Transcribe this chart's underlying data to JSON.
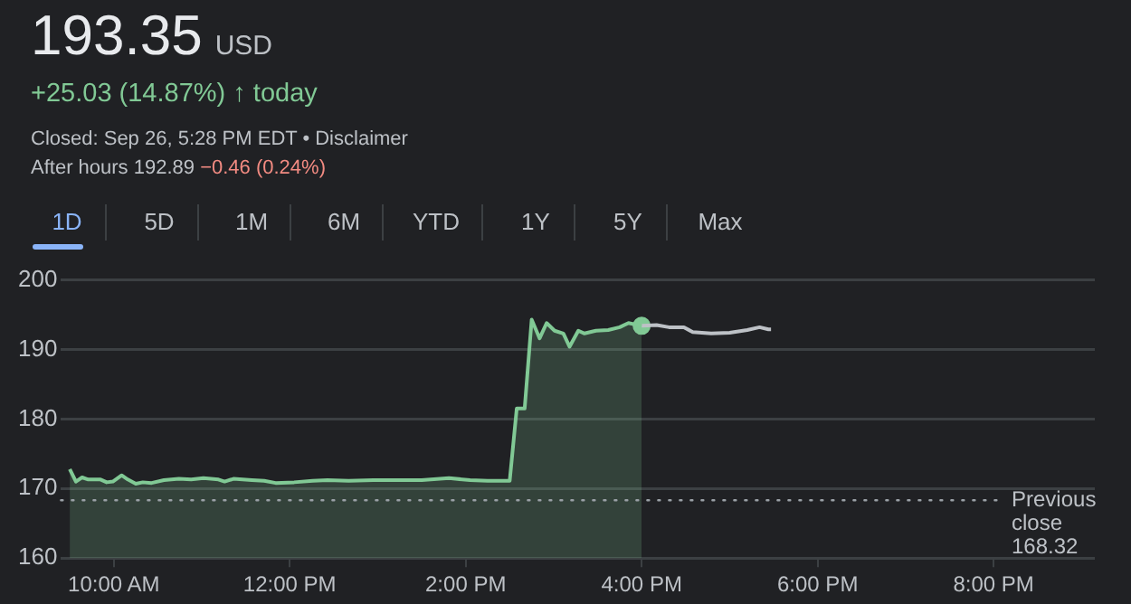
{
  "chart_data": {
    "type": "line",
    "title": "193.35",
    "subtitle": "USD",
    "annotations": [
      "+25.03 (14.87%) ↑ today",
      "Closed: Sep 26, 5:28 PM EDT • Disclaimer",
      "After hours 192.89",
      "−0.46 (0.24%)",
      "1D",
      "5D",
      "1M",
      "6M",
      "YTD",
      "1Y",
      "5Y",
      "Max"
    ],
    "xlim": [
      9.4,
      21.15
    ],
    "xticks": [
      {
        "value": 10,
        "label": "10:00 AM"
      },
      {
        "value": 12,
        "label": "12:00 PM"
      },
      {
        "value": 14,
        "label": "2:00 PM"
      },
      {
        "value": 16,
        "label": "4:00 PM"
      },
      {
        "value": 18,
        "label": "6:00 PM"
      },
      {
        "value": 20,
        "label": "8:00 PM"
      }
    ],
    "ylim": [
      160,
      200
    ],
    "yticks": [
      160,
      170,
      180,
      190,
      200
    ],
    "grid": "y",
    "legend": false,
    "marker": "none",
    "line_style": "solid",
    "series": [
      {
        "type": "area",
        "color": "#81c995",
        "x": [
          9.5,
          9.57,
          9.64,
          9.71,
          9.85,
          9.92,
          9.99,
          10.09,
          10.16,
          10.25,
          10.33,
          10.43,
          10.57,
          10.74,
          10.88,
          11.02,
          11.19,
          11.26,
          11.36,
          11.57,
          11.71,
          11.84,
          12.05,
          12.26,
          12.43,
          12.67,
          12.95,
          13.22,
          13.5,
          13.81,
          14.05,
          14.25,
          14.5,
          14.58,
          14.67,
          14.75,
          14.84,
          14.92,
          15.01,
          15.11,
          15.18,
          15.28,
          15.35,
          15.48,
          15.62,
          15.75,
          15.85,
          16.0
        ],
        "values": [
          172.8,
          171.0,
          171.6,
          171.3,
          171.3,
          170.9,
          171.0,
          171.9,
          171.3,
          170.7,
          170.9,
          170.8,
          171.2,
          171.4,
          171.3,
          171.5,
          171.3,
          171.0,
          171.4,
          171.2,
          171.1,
          170.8,
          170.9,
          171.1,
          171.2,
          171.1,
          171.2,
          171.2,
          171.2,
          171.5,
          171.2,
          171.1,
          171.1,
          181.5,
          181.5,
          194.3,
          191.6,
          193.8,
          192.7,
          192.3,
          190.4,
          192.7,
          192.3,
          192.7,
          192.8,
          193.2,
          193.8,
          193.4
        ]
      },
      {
        "color": "#bdc1c6",
        "x": [
          16.0,
          16.17,
          16.31,
          16.48,
          16.58,
          16.79,
          17.0,
          17.2,
          17.34,
          17.44,
          17.47
        ],
        "values": [
          193.4,
          193.5,
          193.2,
          193.2,
          192.5,
          192.3,
          192.4,
          192.8,
          193.2,
          192.9,
          192.9
        ]
      },
      {
        "type": "scatter",
        "color": "#81c995",
        "marker": "circle",
        "x": [
          16.0
        ],
        "values": [
          193.4
        ]
      }
    ],
    "ref_lines": [
      {
        "axis": "y",
        "value": 168.32,
        "label": "Previous close 168.32",
        "line_style": "dotted",
        "color": "#9aa0a6"
      }
    ]
  }
}
